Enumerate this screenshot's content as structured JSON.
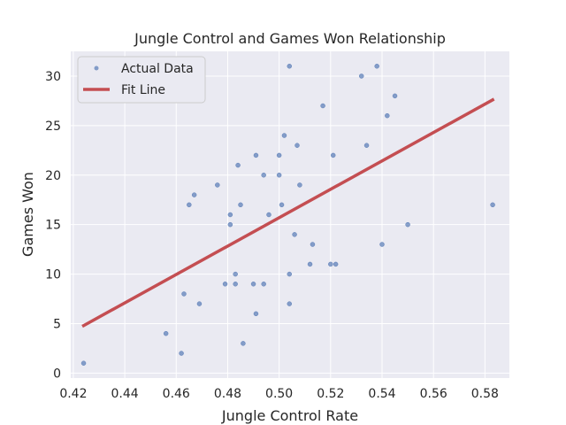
{
  "chart_data": {
    "type": "scatter",
    "title": "Jungle Control and Games Won Relationship",
    "xlabel": "Jungle Control Rate",
    "ylabel": "Games Won",
    "xlim": [
      0.419,
      0.5895
    ],
    "ylim": [
      -0.5,
      32.5
    ],
    "xticks": [
      0.42,
      0.44,
      0.46,
      0.48,
      0.5,
      0.52,
      0.54,
      0.56,
      0.58
    ],
    "xtick_labels": [
      "0.42",
      "0.44",
      "0.46",
      "0.48",
      "0.50",
      "0.52",
      "0.54",
      "0.56",
      "0.58"
    ],
    "yticks": [
      0,
      5,
      10,
      15,
      20,
      25,
      30
    ],
    "ytick_labels": [
      "0",
      "5",
      "10",
      "15",
      "20",
      "25",
      "30"
    ],
    "grid": true,
    "legend_position": "top-left",
    "colors": {
      "background": "#eaeaf2",
      "grid": "#ffffff",
      "points": "#4c72b0",
      "fit_line": "#c44e52"
    },
    "series": [
      {
        "name": "Actual Data",
        "kind": "scatter",
        "points": [
          [
            0.424,
            1
          ],
          [
            0.456,
            4
          ],
          [
            0.462,
            2
          ],
          [
            0.463,
            8
          ],
          [
            0.465,
            17
          ],
          [
            0.467,
            18
          ],
          [
            0.469,
            7
          ],
          [
            0.476,
            19
          ],
          [
            0.479,
            9
          ],
          [
            0.481,
            16
          ],
          [
            0.481,
            15
          ],
          [
            0.483,
            10
          ],
          [
            0.483,
            9
          ],
          [
            0.484,
            21
          ],
          [
            0.485,
            17
          ],
          [
            0.486,
            3
          ],
          [
            0.49,
            9
          ],
          [
            0.491,
            22
          ],
          [
            0.491,
            6
          ],
          [
            0.494,
            20
          ],
          [
            0.494,
            9
          ],
          [
            0.496,
            16
          ],
          [
            0.5,
            22
          ],
          [
            0.5,
            20
          ],
          [
            0.501,
            17
          ],
          [
            0.502,
            24
          ],
          [
            0.504,
            31
          ],
          [
            0.504,
            10
          ],
          [
            0.504,
            7
          ],
          [
            0.506,
            14
          ],
          [
            0.507,
            23
          ],
          [
            0.508,
            19
          ],
          [
            0.512,
            11
          ],
          [
            0.513,
            13
          ],
          [
            0.517,
            27
          ],
          [
            0.52,
            11
          ],
          [
            0.521,
            22
          ],
          [
            0.522,
            11
          ],
          [
            0.532,
            30
          ],
          [
            0.534,
            23
          ],
          [
            0.538,
            31
          ],
          [
            0.54,
            13
          ],
          [
            0.542,
            26
          ],
          [
            0.545,
            28
          ],
          [
            0.55,
            15
          ],
          [
            0.583,
            17
          ]
        ]
      },
      {
        "name": "Fit Line",
        "kind": "line",
        "points": [
          [
            0.424,
            4.8
          ],
          [
            0.583,
            27.6
          ]
        ]
      }
    ]
  }
}
